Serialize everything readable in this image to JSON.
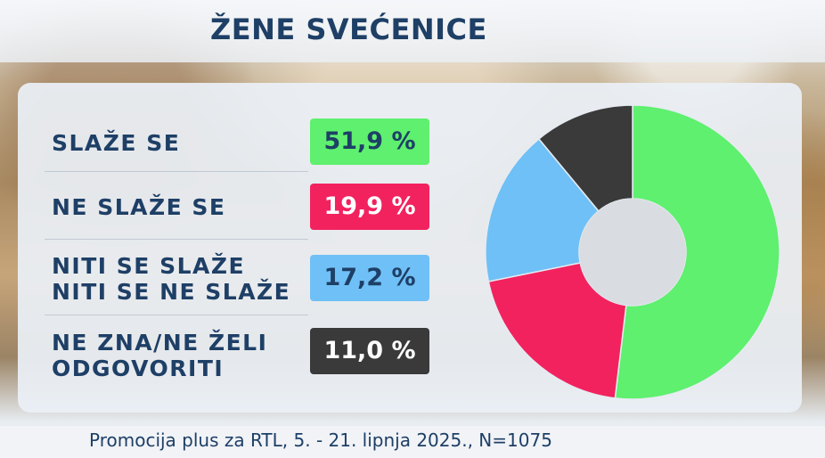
{
  "title": "ŽENE SVEĆENICE",
  "footer": "Promocija plus za RTL, 5. - 21. lipnja 2025., N=1075",
  "chart_data": {
    "type": "pie",
    "title": "ŽENE SVEĆENICE",
    "categories": [
      "SLAŽE SE",
      "NE SLAŽE SE",
      "NITI SE SLAŽE NITI SE NE SLAŽE",
      "NE ZNA/NE ŽELI ODGOVORITI"
    ],
    "values": [
      51.9,
      19.9,
      17.2,
      11.0
    ],
    "unit": "%",
    "colors": [
      "#5ef06e",
      "#f2225f",
      "#6fc0f6",
      "#3a3a3a"
    ],
    "donut": true
  },
  "rows": [
    {
      "label_line1": "SLAŽE SE",
      "label_line2": "",
      "value_text": "51,9 %",
      "badge_color": "#5ef06e",
      "text_color": "#1e3f66"
    },
    {
      "label_line1": "NE SLAŽE SE",
      "label_line2": "",
      "value_text": "19,9 %",
      "badge_color": "#f2225f",
      "text_color": "#ffffff"
    },
    {
      "label_line1": "NITI SE SLAŽE",
      "label_line2": "NITI SE NE SLAŽE",
      "value_text": "17,2 %",
      "badge_color": "#6fc0f6",
      "text_color": "#1e3f66"
    },
    {
      "label_line1": "NE ZNA/NE ŽELI",
      "label_line2": "ODGOVORITI",
      "value_text": "11,0 %",
      "badge_color": "#3a3a3a",
      "text_color": "#ffffff"
    }
  ]
}
